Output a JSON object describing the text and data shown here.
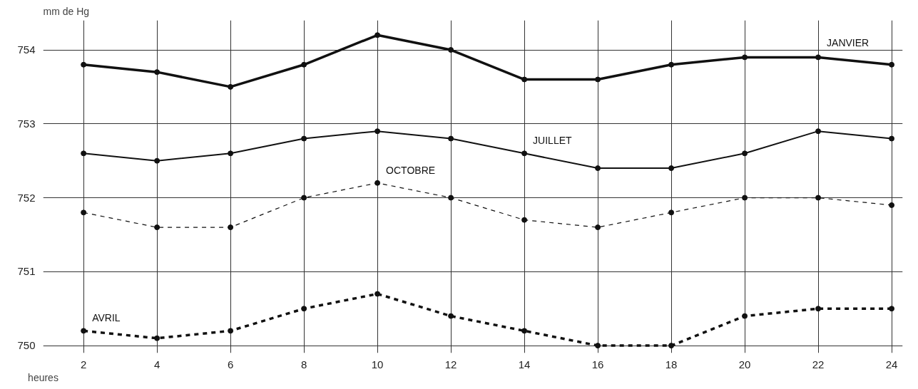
{
  "chart_data": {
    "type": "line",
    "xlabel": "heures",
    "ylabel": "mm de Hg",
    "x": [
      2,
      4,
      6,
      8,
      10,
      12,
      14,
      16,
      18,
      20,
      22,
      24
    ],
    "series": [
      {
        "name": "JANVIER",
        "color": "#111111",
        "line_style": "solid",
        "values": [
          753.8,
          753.7,
          753.5,
          753.8,
          754.2,
          754.0,
          753.6,
          753.6,
          753.8,
          753.9,
          753.9,
          753.8
        ]
      },
      {
        "name": "JUILLET",
        "color": "#111111",
        "line_style": "solid",
        "values": [
          752.6,
          752.5,
          752.6,
          752.8,
          752.9,
          752.8,
          752.6,
          752.4,
          752.4,
          752.6,
          752.9,
          752.8
        ]
      },
      {
        "name": "OCTOBRE",
        "color": "#111111",
        "line_style": "dashed",
        "values": [
          751.8,
          751.6,
          751.6,
          752.0,
          752.2,
          752.0,
          751.7,
          751.6,
          751.8,
          752.0,
          752.0,
          751.9
        ]
      },
      {
        "name": "AVRIL",
        "color": "#111111",
        "line_style": "dashed",
        "values": [
          750.2,
          750.1,
          750.2,
          750.5,
          750.7,
          750.4,
          750.2,
          750.0,
          750.0,
          750.4,
          750.5,
          750.5
        ]
      }
    ],
    "xlim": [
      0.9,
      24.3
    ],
    "ylim": [
      749.9,
      754.4
    ],
    "xticks": [
      2,
      4,
      6,
      8,
      10,
      12,
      14,
      16,
      18,
      20,
      22,
      24
    ],
    "yticks": [
      750,
      751,
      752,
      753,
      754
    ],
    "grid": true,
    "legend": false,
    "marker": "circle"
  }
}
